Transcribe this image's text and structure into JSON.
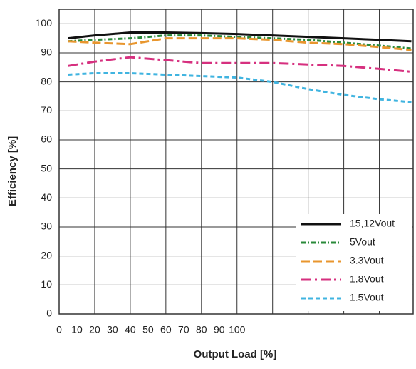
{
  "chart_data": {
    "type": "line",
    "x_label": "Output Load [%]",
    "y_label": "Efficiency [%]",
    "x": [
      5,
      20,
      40,
      60,
      80,
      100,
      120,
      140,
      160,
      180,
      198
    ],
    "series": [
      {
        "name": "15,12Vout",
        "color": "#111111",
        "dash": "none",
        "values": [
          95,
          96,
          97,
          97,
          96.8,
          96.5,
          96,
          95.5,
          95,
          94.5,
          94
        ]
      },
      {
        "name": "5Vout",
        "color": "#2a8a3a",
        "dash": "6 3 2 3",
        "values": [
          94,
          94.5,
          95,
          96,
          96,
          95.5,
          95,
          94.5,
          93.5,
          92.5,
          91.5
        ]
      },
      {
        "name": "3.3Vout",
        "color": "#e8962e",
        "dash": "12 5",
        "values": [
          94,
          93.5,
          93,
          95,
          95,
          95,
          94.5,
          93.5,
          93,
          92,
          91
        ]
      },
      {
        "name": "1.8Vout",
        "color": "#d6307f",
        "dash": "14 5 3 5",
        "values": [
          85.5,
          87,
          88.5,
          87.5,
          86.5,
          86.5,
          86.5,
          86,
          85.5,
          84.5,
          83.5
        ]
      },
      {
        "name": "1.5Vout",
        "color": "#40b4e0",
        "dash": "6 4",
        "values": [
          82.5,
          83,
          83,
          82.5,
          82,
          81.5,
          80,
          77.5,
          75.5,
          74,
          73
        ]
      }
    ],
    "xlim": [
      0,
      199
    ],
    "xticks": [
      0,
      10,
      20,
      30,
      40,
      50,
      60,
      70,
      80,
      90,
      100
    ],
    "xgrid": [
      20,
      40,
      60,
      80,
      100,
      120,
      140,
      160,
      180
    ],
    "ylim": [
      0,
      105
    ],
    "yticks": [
      0,
      10,
      20,
      30,
      40,
      50,
      60,
      70,
      80,
      90,
      100
    ],
    "grid": true,
    "legend": "lower right"
  }
}
